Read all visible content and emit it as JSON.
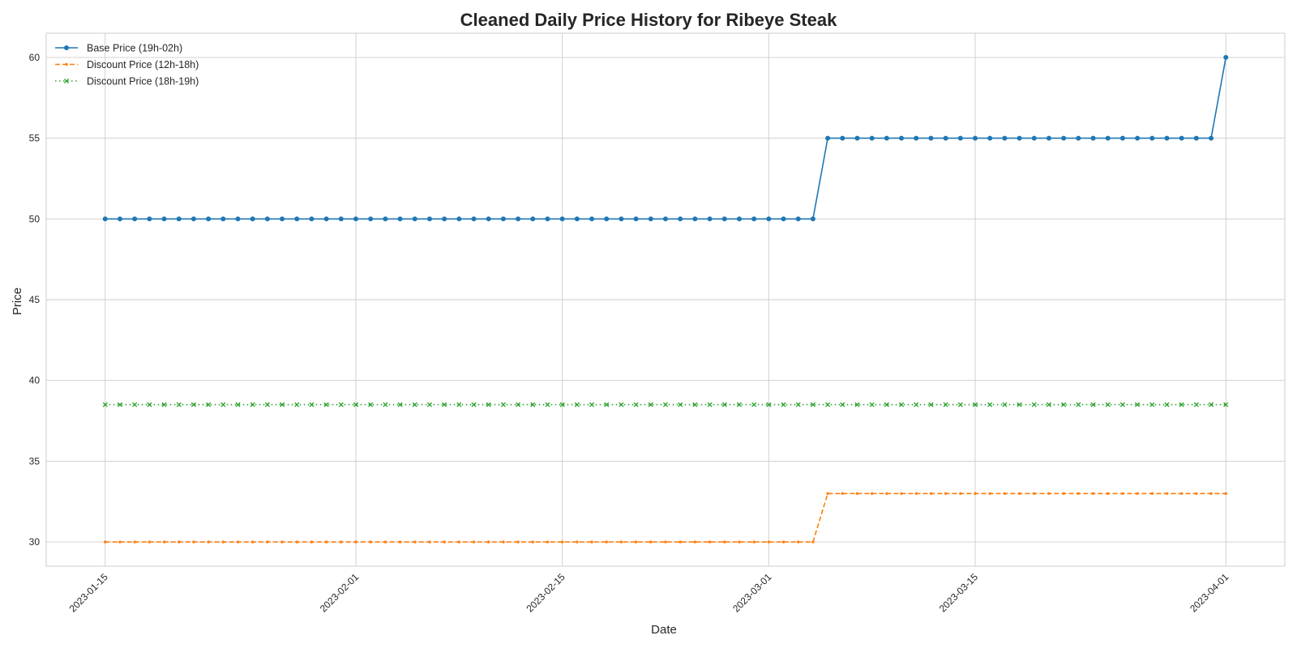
{
  "chart_data": {
    "type": "line",
    "title": "Cleaned Daily Price History for Ribeye Steak",
    "xlabel": "Date",
    "ylabel": "Price",
    "x_start": "2023-01-15",
    "x_end": "2023-04-01",
    "xlim": [
      "2023-01-11",
      "2023-04-05"
    ],
    "ylim": [
      28.5,
      61.5
    ],
    "x_ticks": [
      "2023-01-15",
      "2023-02-01",
      "2023-02-15",
      "2023-03-01",
      "2023-03-15",
      "2023-04-01"
    ],
    "y_ticks": [
      30,
      35,
      40,
      45,
      50,
      55,
      60
    ],
    "grid": true,
    "legend_position": "top-left",
    "series": [
      {
        "name": "Base Price (19h-02h)",
        "color": "#1f77b4",
        "line_style": "solid",
        "marker": "circle",
        "segments": [
          {
            "from": "2023-01-15",
            "to": "2023-03-04",
            "value": 50
          },
          {
            "from": "2023-03-05",
            "to": "2023-03-31",
            "value": 55
          },
          {
            "from": "2023-04-01",
            "to": "2023-04-01",
            "value": 60
          }
        ]
      },
      {
        "name": "Discount Price (12h-18h)",
        "color": "#ff7f0e",
        "line_style": "dashed",
        "marker": "point",
        "segments": [
          {
            "from": "2023-01-15",
            "to": "2023-03-04",
            "value": 30
          },
          {
            "from": "2023-03-05",
            "to": "2023-04-01",
            "value": 33
          }
        ]
      },
      {
        "name": "Discount Price (18h-19h)",
        "color": "#2ca02c",
        "line_style": "dotted",
        "marker": "x",
        "segments": [
          {
            "from": "2023-01-15",
            "to": "2023-04-01",
            "value": 38.5
          }
        ]
      }
    ]
  }
}
